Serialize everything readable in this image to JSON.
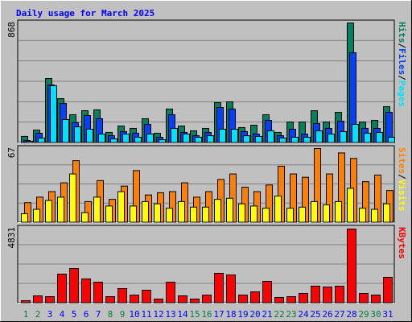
{
  "title": "Daily usage for March 2025",
  "chart_data": [
    {
      "type": "bar",
      "ymax_label": "868",
      "ylim": [
        0,
        868
      ],
      "series": [
        {
          "name": "Hits",
          "color": "#00805c",
          "values": [
            47,
            93,
            466,
            320,
            204,
            233,
            239,
            76,
            122,
            105,
            175,
            70,
            245,
            122,
            87,
            105,
            291,
            297,
            111,
            128,
            204,
            76,
            151,
            151,
            233,
            151,
            221,
            868,
            151,
            163,
            262
          ]
        },
        {
          "name": "Files",
          "color": "#0040ff",
          "values": [
            17,
            70,
            419,
            285,
            146,
            198,
            175,
            52,
            82,
            70,
            134,
            41,
            204,
            76,
            52,
            76,
            256,
            245,
            82,
            64,
            163,
            52,
            99,
            64,
            140,
            105,
            157,
            652,
            105,
            105,
            221
          ]
        },
        {
          "name": "Pages",
          "color": "#00e0ff",
          "values": [
            12,
            35,
            414,
            169,
            116,
            99,
            64,
            29,
            64,
            41,
            64,
            23,
            105,
            64,
            41,
            52,
            99,
            99,
            52,
            47,
            87,
            35,
            41,
            41,
            87,
            64,
            82,
            134,
            70,
            76,
            41
          ]
        }
      ]
    },
    {
      "type": "bar",
      "ymax_label": "67",
      "ylim": [
        0,
        67
      ],
      "series": [
        {
          "name": "Visits",
          "color": "#ffff00",
          "values": [
            8,
            12,
            20,
            23,
            44,
            9,
            23,
            15,
            28,
            15,
            19,
            17,
            13,
            19,
            14,
            14,
            21,
            22,
            17,
            15,
            13,
            24,
            13,
            14,
            19,
            16,
            19,
            31,
            13,
            12,
            17
          ]
        },
        {
          "name": "Sites",
          "color": "#ff8000",
          "values": [
            18,
            23,
            28,
            36,
            56,
            19,
            38,
            21,
            33,
            47,
            25,
            27,
            28,
            36,
            23,
            28,
            39,
            44,
            32,
            28,
            34,
            51,
            44,
            41,
            67,
            44,
            63,
            58,
            37,
            43,
            29
          ]
        }
      ]
    },
    {
      "type": "bar",
      "ymax_label": "4831",
      "ylim": [
        0,
        4831
      ],
      "categories": [
        "1",
        "2",
        "3",
        "4",
        "5",
        "6",
        "7",
        "8",
        "9",
        "10",
        "11",
        "12",
        "13",
        "14",
        "15",
        "16",
        "17",
        "18",
        "19",
        "20",
        "21",
        "22",
        "23",
        "24",
        "25",
        "26",
        "27",
        "28",
        "29",
        "30",
        "31"
      ],
      "category_colors": [
        "#008040",
        "#008040",
        "#0000ff",
        "#0000ff",
        "#0000ff",
        "#0000ff",
        "#0000ff",
        "#008040",
        "#008040",
        "#0000ff",
        "#0000ff",
        "#0000ff",
        "#0000ff",
        "#0000ff",
        "#008040",
        "#008040",
        "#0000ff",
        "#0000ff",
        "#0000ff",
        "#0000ff",
        "#0000ff",
        "#008040",
        "#008040",
        "#0000ff",
        "#0000ff",
        "#0000ff",
        "#0000ff",
        "#0000ff",
        "#008040",
        "#008040",
        "#0000ff"
      ],
      "series": [
        {
          "name": "KBytes",
          "color": "#ff0000",
          "values": [
            158,
            473,
            420,
            1890,
            2258,
            1576,
            1365,
            420,
            945,
            525,
            840,
            263,
            1365,
            473,
            263,
            525,
            1943,
            1838,
            525,
            735,
            1418,
            368,
            420,
            630,
            1103,
            1050,
            1103,
            4831,
            630,
            525,
            1681
          ]
        }
      ]
    }
  ]
}
